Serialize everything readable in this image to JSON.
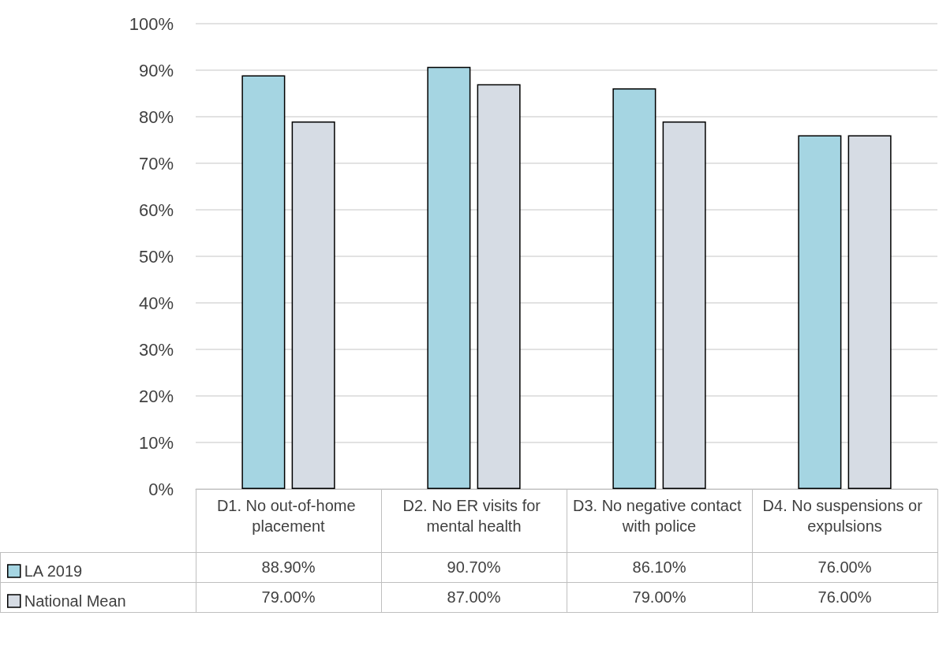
{
  "chart_data": {
    "type": "bar",
    "categories": [
      "D1. No out-of-home placement",
      "D2. No ER visits for mental health",
      "D3. No negative contact with police",
      "D4. No suspensions or expulsions"
    ],
    "series": [
      {
        "name": "LA 2019",
        "color": "#a5d5e2",
        "values": [
          88.9,
          90.7,
          86.1,
          76.0
        ],
        "value_labels": [
          "88.90%",
          "90.70%",
          "86.10%",
          "76.00%"
        ]
      },
      {
        "name": "National Mean",
        "color": "#d6dce4",
        "values": [
          79.0,
          87.0,
          79.0,
          76.0
        ],
        "value_labels": [
          "79.00%",
          "87.00%",
          "79.00%",
          "76.00%"
        ]
      }
    ],
    "ylim": [
      0,
      100
    ],
    "yticks": [
      {
        "value": 0,
        "label": "0%"
      },
      {
        "value": 10,
        "label": "10%"
      },
      {
        "value": 20,
        "label": "20%"
      },
      {
        "value": 30,
        "label": "30%"
      },
      {
        "value": 40,
        "label": "40%"
      },
      {
        "value": 50,
        "label": "50%"
      },
      {
        "value": 60,
        "label": "60%"
      },
      {
        "value": 70,
        "label": "70%"
      },
      {
        "value": 80,
        "label": "80%"
      },
      {
        "value": 90,
        "label": "90%"
      },
      {
        "value": 100,
        "label": "100%"
      }
    ],
    "grid": "y",
    "legend": "bottom"
  }
}
